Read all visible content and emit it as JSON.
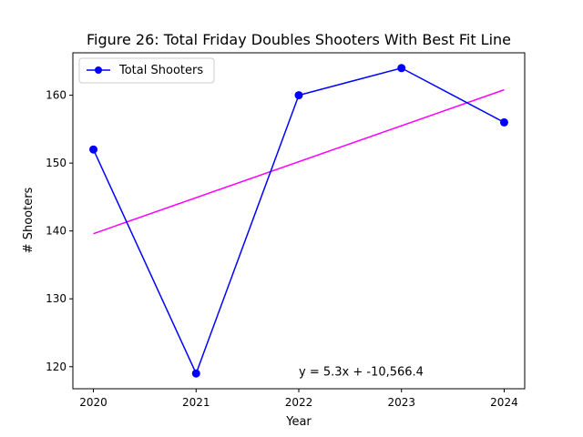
{
  "chart_data": {
    "type": "line",
    "title": "Figure 26: Total Friday Doubles Shooters With Best Fit Line",
    "xlabel": "Year",
    "ylabel": "# Shooters",
    "x": [
      2020,
      2021,
      2022,
      2023,
      2024
    ],
    "x_tick_labels": [
      "2020",
      "2021",
      "2022",
      "2023",
      "2024"
    ],
    "y_ticks": [
      120,
      130,
      140,
      150,
      160
    ],
    "y_tick_labels": [
      "120",
      "130",
      "140",
      "150",
      "160"
    ],
    "xlim": [
      2019.8,
      2024.2
    ],
    "ylim": [
      116.75,
      166.25
    ],
    "series": [
      {
        "name": "Total Shooters",
        "values": [
          152,
          119,
          160,
          164,
          156
        ],
        "color": "#0000ff",
        "marker": "circle"
      }
    ],
    "best_fit": {
      "slope": 5.3,
      "intercept": -10566.4,
      "color": "#ff00ff",
      "x_range": [
        2020,
        2024
      ]
    },
    "annotation": {
      "text": "y = 5.3x + -10,566.4",
      "x": 2022,
      "y": 119.2
    },
    "legend": {
      "position": "upper-left"
    },
    "grid": false
  }
}
